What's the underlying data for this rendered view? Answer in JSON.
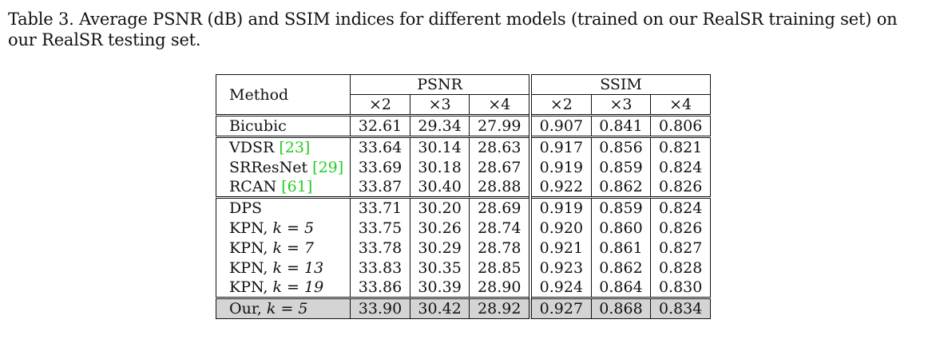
{
  "caption": "Table 3. Average PSNR (dB) and SSIM indices for different models (trained on our RealSR training set) on our RealSR testing set.",
  "table": {
    "method_header": "Method",
    "psnr_header": "PSNR",
    "ssim_header": "SSIM",
    "scales": [
      "×2",
      "×3",
      "×4",
      "×2",
      "×3",
      "×4"
    ],
    "rows": [
      {
        "method": "Bicubic",
        "cite": "",
        "k": "",
        "values": [
          "32.61",
          "29.34",
          "27.99",
          "0.907",
          "0.841",
          "0.806"
        ]
      },
      {
        "method": "VDSR ",
        "cite": "[23]",
        "k": "",
        "values": [
          "33.64",
          "30.14",
          "28.63",
          "0.917",
          "0.856",
          "0.821"
        ]
      },
      {
        "method": "SRResNet ",
        "cite": "[29]",
        "k": "",
        "values": [
          "33.69",
          "30.18",
          "28.67",
          "0.919",
          "0.859",
          "0.824"
        ]
      },
      {
        "method": "RCAN ",
        "cite": "[61]",
        "k": "",
        "values": [
          "33.87",
          "30.40",
          "28.88",
          "0.922",
          "0.862",
          "0.826"
        ]
      },
      {
        "method": "DPS",
        "cite": "",
        "k": "",
        "values": [
          "33.71",
          "30.20",
          "28.69",
          "0.919",
          "0.859",
          "0.824"
        ]
      },
      {
        "method": "KPN, ",
        "cite": "",
        "k": "k = 5",
        "values": [
          "33.75",
          "30.26",
          "28.74",
          "0.920",
          "0.860",
          "0.826"
        ]
      },
      {
        "method": "KPN, ",
        "cite": "",
        "k": "k = 7",
        "values": [
          "33.78",
          "30.29",
          "28.78",
          "0.921",
          "0.861",
          "0.827"
        ]
      },
      {
        "method": "KPN, ",
        "cite": "",
        "k": "k = 13",
        "values": [
          "33.83",
          "30.35",
          "28.85",
          "0.923",
          "0.862",
          "0.828"
        ]
      },
      {
        "method": "KPN, ",
        "cite": "",
        "k": "k = 19",
        "values": [
          "33.86",
          "30.39",
          "28.90",
          "0.924",
          "0.864",
          "0.830"
        ]
      },
      {
        "method": "Our, ",
        "cite": "",
        "k": "k = 5",
        "values": [
          "33.90",
          "30.42",
          "28.92",
          "0.927",
          "0.868",
          "0.834"
        ]
      }
    ]
  }
}
